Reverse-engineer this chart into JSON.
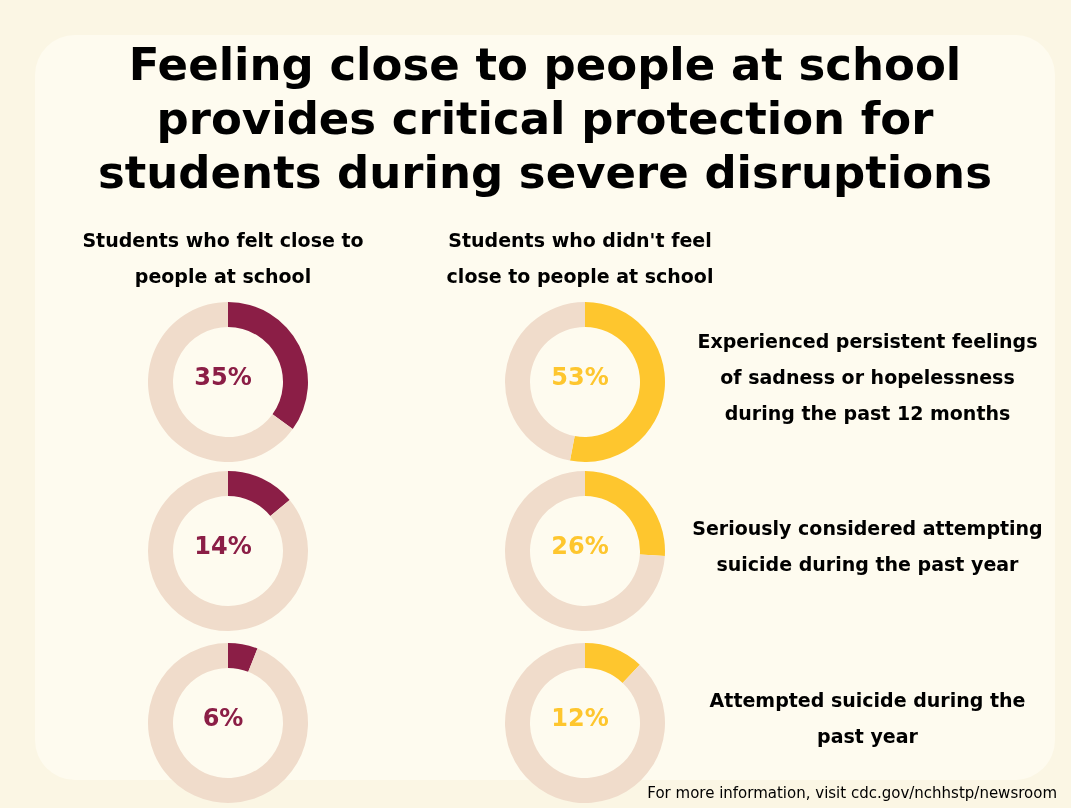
{
  "chart_data": [
    {
      "type": "other",
      "title": "Feeling close to people at school provides critical protection for students during severe disruptions",
      "annotations": [
        "For more information, visit cdc.gov/nchhstp/newsroom"
      ]
    },
    {
      "type": "donut",
      "title": "Students who felt close to people at school",
      "categories": [
        null,
        null
      ],
      "values": [
        35,
        65
      ],
      "colors": [
        "#8b1e46",
        "#f0dccb"
      ],
      "annotations": [
        "35%"
      ]
    },
    {
      "type": "donut",
      "title": "Students who didn't feel close to people at school",
      "categories": [
        null,
        null
      ],
      "values": [
        53,
        47
      ],
      "colors": [
        "#fec62e",
        "#f0dccb"
      ],
      "annotations": [
        "53%",
        "Experienced persistent feelings of sadness or hopelessness during the past 12 months"
      ]
    },
    {
      "type": "donut",
      "categories": [
        null,
        null
      ],
      "values": [
        14,
        86
      ],
      "colors": [
        "#8b1e46",
        "#f0dccb"
      ],
      "annotations": [
        "14%"
      ]
    },
    {
      "type": "donut",
      "categories": [
        null,
        null
      ],
      "values": [
        26,
        74
      ],
      "colors": [
        "#fec62e",
        "#f0dccb"
      ],
      "annotations": [
        "26%",
        "Seriously considered attempting suicide during the past year"
      ]
    },
    {
      "type": "donut",
      "categories": [
        null,
        null
      ],
      "values": [
        6,
        94
      ],
      "colors": [
        "#8b1e46",
        "#f0dccb"
      ],
      "annotations": [
        "6%"
      ]
    },
    {
      "type": "donut",
      "categories": [
        null,
        null
      ],
      "values": [
        12,
        88
      ],
      "colors": [
        "#fec62e",
        "#f0dccb"
      ],
      "annotations": [
        "12%",
        "Attempted suicide during the past year"
      ]
    }
  ]
}
